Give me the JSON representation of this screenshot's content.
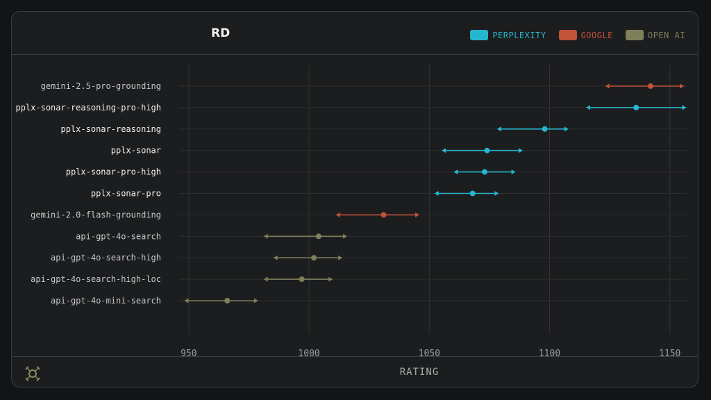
{
  "chart_data": {
    "type": "errorbar",
    "title": "RD",
    "xlabel": "RATING",
    "xlim": [
      946,
      1157
    ],
    "xticks": [
      950,
      1000,
      1050,
      1100,
      1150
    ],
    "grid": true,
    "legend_position": "top-right",
    "series": [
      {
        "name": "PERPLEXITY",
        "color": "#26b5cf"
      },
      {
        "name": "GOOGLE",
        "color": "#c2523a"
      },
      {
        "name": "OPEN AI",
        "color": "#7f7f5c"
      }
    ],
    "categories": [
      "gemini-2.5-pro-grounding",
      "pplx-sonar-reasoning-pro-high",
      "pplx-sonar-reasoning",
      "pplx-sonar",
      "pplx-sonar-pro-high",
      "pplx-sonar-pro",
      "gemini-2.0-flash-grounding",
      "api-gpt-4o-search",
      "api-gpt-4o-search-high",
      "api-gpt-4o-search-high-loc",
      "api-gpt-4o-mini-search"
    ],
    "points": [
      {
        "label": "gemini-2.5-pro-grounding",
        "series": "GOOGLE",
        "value": 1142,
        "low": 1124,
        "high": 1155
      },
      {
        "label": "pplx-sonar-reasoning-pro-high",
        "series": "PERPLEXITY",
        "value": 1136,
        "low": 1116,
        "high": 1156
      },
      {
        "label": "pplx-sonar-reasoning",
        "series": "PERPLEXITY",
        "value": 1098,
        "low": 1079,
        "high": 1107
      },
      {
        "label": "pplx-sonar",
        "series": "PERPLEXITY",
        "value": 1074,
        "low": 1056,
        "high": 1088
      },
      {
        "label": "pplx-sonar-pro-high",
        "series": "PERPLEXITY",
        "value": 1073,
        "low": 1061,
        "high": 1085
      },
      {
        "label": "pplx-sonar-pro",
        "series": "PERPLEXITY",
        "value": 1068,
        "low": 1053,
        "high": 1078
      },
      {
        "label": "gemini-2.0-flash-grounding",
        "series": "GOOGLE",
        "value": 1031,
        "low": 1012,
        "high": 1045
      },
      {
        "label": "api-gpt-4o-search",
        "series": "OPEN AI",
        "value": 1004,
        "low": 982,
        "high": 1015
      },
      {
        "label": "api-gpt-4o-search-high",
        "series": "OPEN AI",
        "value": 1002,
        "low": 986,
        "high": 1013
      },
      {
        "label": "api-gpt-4o-search-high-loc",
        "series": "OPEN AI",
        "value": 997,
        "low": 982,
        "high": 1009
      },
      {
        "label": "api-gpt-4o-mini-search",
        "series": "OPEN AI",
        "value": 966,
        "low": 949,
        "high": 978
      }
    ]
  },
  "logo": {
    "icon": "orbit-logo-icon",
    "color": "#8a8a5c"
  }
}
